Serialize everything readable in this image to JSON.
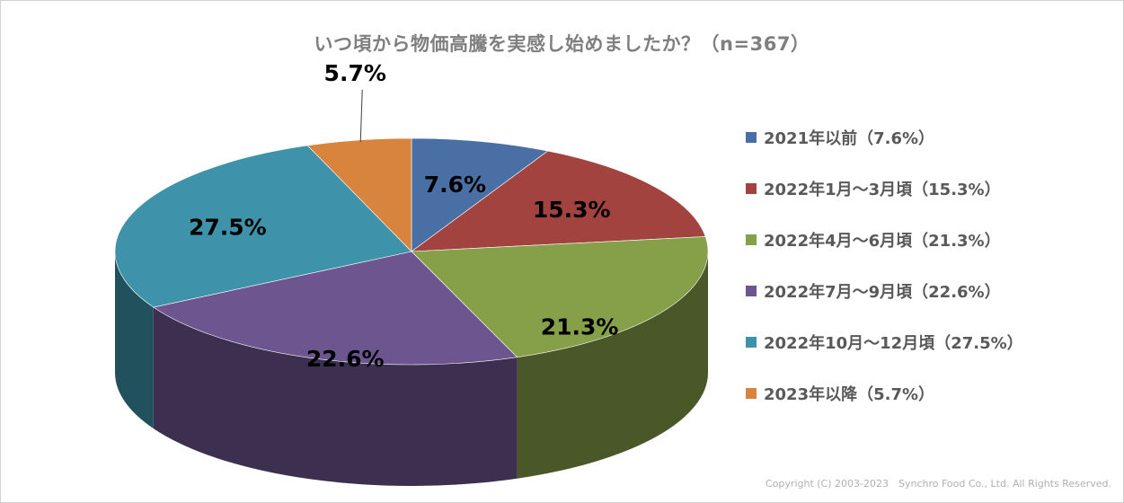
{
  "chart_data": {
    "type": "pie",
    "title": "いつ頃から物価高騰を実感し始めましたか？（n=367）",
    "slices": [
      {
        "label": "2021年以前（7.6%）",
        "value": 7.6,
        "data_label": "7.6%",
        "color": "#4a6fa5"
      },
      {
        "label": "2022年1月～3月頃（15.3%）",
        "value": 15.3,
        "data_label": "15.3%",
        "color": "#a34340"
      },
      {
        "label": "2022年4月～6月頃（21.3%）",
        "value": 21.3,
        "data_label": "21.3%",
        "color": "#86a04a"
      },
      {
        "label": "2022年7月～9月頃（22.6%）",
        "value": 22.6,
        "data_label": "22.6%",
        "color": "#6d5690"
      },
      {
        "label": "2022年10月～12月頃（27.5%）",
        "value": 27.5,
        "data_label": "27.5%",
        "color": "#3e93ab"
      },
      {
        "label": "2023年以降（5.7%）",
        "value": 5.7,
        "data_label": "5.7%",
        "color": "#d9843d"
      }
    ],
    "legend_position": "right",
    "style": "3d-pie"
  },
  "copyright": "Copyright (C) 2003-2023　Synchro Food Co., Ltd. All Rights Reserved."
}
